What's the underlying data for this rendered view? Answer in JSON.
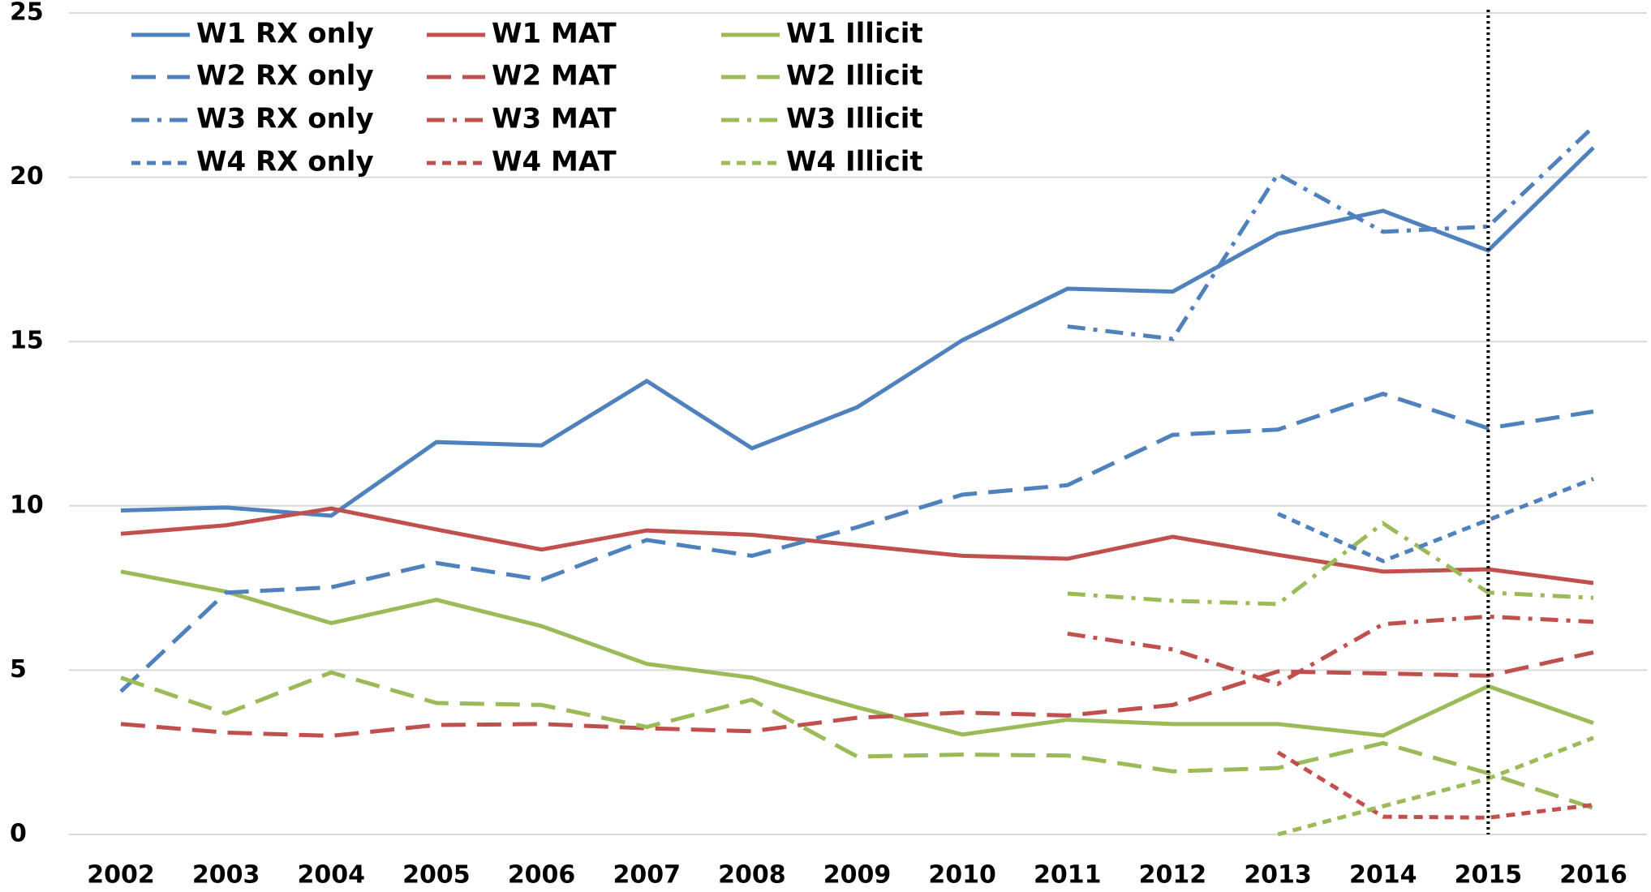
{
  "chart_data": {
    "type": "line",
    "categories": [
      "2002",
      "2003",
      "2004",
      "2005",
      "2006",
      "2007",
      "2008",
      "2009",
      "2010",
      "2011",
      "2012",
      "2013",
      "2014",
      "2015",
      "2016"
    ],
    "ylim": [
      0,
      25
    ],
    "yticks": [
      0,
      5,
      10,
      15,
      20,
      25
    ],
    "grid": true,
    "reference_line": {
      "x": "2015",
      "style": "dotted",
      "color": "#000000"
    },
    "series": [
      {
        "name": "W1 RX only",
        "color": "#4f81bd",
        "style": "solid",
        "values": [
          9.86,
          9.95,
          9.7,
          11.94,
          11.84,
          13.8,
          11.75,
          13.0,
          15.04,
          16.61,
          16.52,
          18.28,
          18.98,
          17.77,
          20.9
        ]
      },
      {
        "name": "W1 MAT",
        "color": "#c0504d",
        "style": "solid",
        "values": [
          9.15,
          9.41,
          9.92,
          9.28,
          8.67,
          9.25,
          9.12,
          8.8,
          8.48,
          8.39,
          9.06,
          8.51,
          8.0,
          8.07,
          7.65
        ]
      },
      {
        "name": "W1 Illicit",
        "color": "#9bbb59",
        "style": "solid",
        "values": [
          8.0,
          7.39,
          6.43,
          7.14,
          6.34,
          5.19,
          4.77,
          3.87,
          3.04,
          3.49,
          3.36,
          3.36,
          3.01,
          4.51,
          3.39
        ]
      },
      {
        "name": "W2 RX only",
        "color": "#4f81bd",
        "style": "long-dash",
        "values": [
          4.35,
          7.36,
          7.52,
          8.26,
          7.75,
          8.96,
          8.48,
          9.35,
          10.34,
          10.63,
          12.16,
          12.32,
          13.41,
          12.36,
          12.87
        ]
      },
      {
        "name": "W2 MAT",
        "color": "#c0504d",
        "style": "long-dash",
        "values": [
          3.36,
          3.1,
          3.0,
          3.33,
          3.36,
          3.23,
          3.14,
          3.55,
          3.71,
          3.62,
          3.94,
          4.96,
          4.9,
          4.83,
          5.54
        ]
      },
      {
        "name": "W2 Illicit",
        "color": "#9bbb59",
        "style": "long-dash",
        "values": [
          4.77,
          3.68,
          4.93,
          4.0,
          3.94,
          3.27,
          4.1,
          2.37,
          2.43,
          2.4,
          1.92,
          2.02,
          2.78,
          1.86,
          0.8
        ]
      },
      {
        "name": "W3 RX only",
        "color": "#4f81bd",
        "style": "dash-dot",
        "values": [
          null,
          null,
          null,
          null,
          null,
          null,
          null,
          null,
          null,
          15.46,
          15.08,
          20.1,
          18.34,
          18.5,
          21.54
        ]
      },
      {
        "name": "W3 MAT",
        "color": "#c0504d",
        "style": "dash-dot",
        "values": [
          null,
          null,
          null,
          null,
          null,
          null,
          null,
          null,
          null,
          6.11,
          5.63,
          4.58,
          6.4,
          6.63,
          6.47
        ]
      },
      {
        "name": "W3 Illicit",
        "color": "#9bbb59",
        "style": "dash-dot",
        "values": [
          null,
          null,
          null,
          null,
          null,
          null,
          null,
          null,
          null,
          7.33,
          7.11,
          7.01,
          9.47,
          7.36,
          7.2
        ]
      },
      {
        "name": "W4 RX only",
        "color": "#4f81bd",
        "style": "short-dash",
        "values": [
          null,
          null,
          null,
          null,
          null,
          null,
          null,
          null,
          null,
          null,
          null,
          9.76,
          8.32,
          9.57,
          10.82
        ]
      },
      {
        "name": "W4 MAT",
        "color": "#c0504d",
        "style": "short-dash",
        "values": [
          null,
          null,
          null,
          null,
          null,
          null,
          null,
          null,
          null,
          null,
          null,
          2.5,
          0.54,
          0.51,
          0.9
        ]
      },
      {
        "name": "W4 Illicit",
        "color": "#9bbb59",
        "style": "short-dash",
        "values": [
          null,
          null,
          null,
          null,
          null,
          null,
          null,
          null,
          null,
          null,
          null,
          0,
          0.86,
          1.7,
          2.94
        ]
      }
    ]
  }
}
